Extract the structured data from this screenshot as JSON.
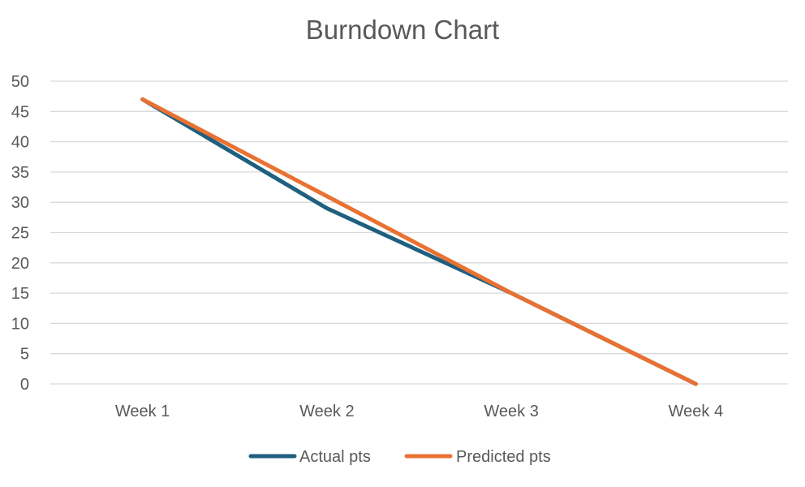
{
  "chart_data": {
    "type": "line",
    "title": "Burndown Chart",
    "xlabel": "",
    "ylabel": "",
    "categories": [
      "Week 1",
      "Week 2",
      "Week 3",
      "Week 4"
    ],
    "series": [
      {
        "name": "Actual pts",
        "values": [
          47,
          29,
          15,
          0
        ],
        "color": "#1f5f7f"
      },
      {
        "name": "Predicted pts",
        "values": [
          47,
          31,
          15,
          0
        ],
        "color": "#e97132"
      }
    ],
    "ylim": [
      0,
      50
    ],
    "yticks": [
      0,
      5,
      10,
      15,
      20,
      25,
      30,
      35,
      40,
      45,
      50
    ],
    "grid": "horizontal",
    "legend_position": "bottom"
  }
}
